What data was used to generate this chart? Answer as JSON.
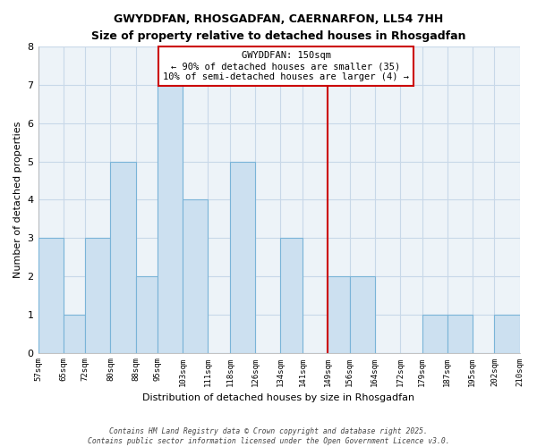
{
  "title": "GWYDDFAN, RHOSGADFAN, CAERNARFON, LL54 7HH",
  "subtitle": "Size of property relative to detached houses in Rhosgadfan",
  "xlabel": "Distribution of detached houses by size in Rhosgadfan",
  "ylabel": "Number of detached properties",
  "bin_edges": [
    57,
    65,
    72,
    80,
    88,
    95,
    103,
    111,
    118,
    126,
    134,
    141,
    149,
    156,
    164,
    172,
    179,
    187,
    195,
    202,
    210
  ],
  "counts": [
    3,
    1,
    3,
    5,
    2,
    7,
    4,
    0,
    5,
    0,
    3,
    0,
    2,
    2,
    0,
    0,
    1,
    1,
    0,
    1
  ],
  "bar_color": "#cce0f0",
  "bar_edge_color": "#7ab4d8",
  "vline_x": 149,
  "vline_color": "#cc0000",
  "annotation_title": "GWYDDFAN: 150sqm",
  "annotation_line1": "← 90% of detached houses are smaller (35)",
  "annotation_line2": "10% of semi-detached houses are larger (4) →",
  "annotation_box_color": "#ffffff",
  "annotation_box_edge": "#cc0000",
  "ylim": [
    0,
    8
  ],
  "yticks": [
    0,
    1,
    2,
    3,
    4,
    5,
    6,
    7,
    8
  ],
  "footer1": "Contains HM Land Registry data © Crown copyright and database right 2025.",
  "footer2": "Contains public sector information licensed under the Open Government Licence v3.0.",
  "plot_bg_color": "#edf3f8",
  "fig_bg_color": "#ffffff",
  "grid_color": "#c8d8e8",
  "tick_labels": [
    "57sqm",
    "65sqm",
    "72sqm",
    "80sqm",
    "88sqm",
    "95sqm",
    "103sqm",
    "111sqm",
    "118sqm",
    "126sqm",
    "134sqm",
    "141sqm",
    "149sqm",
    "156sqm",
    "164sqm",
    "172sqm",
    "179sqm",
    "187sqm",
    "195sqm",
    "202sqm",
    "210sqm"
  ]
}
